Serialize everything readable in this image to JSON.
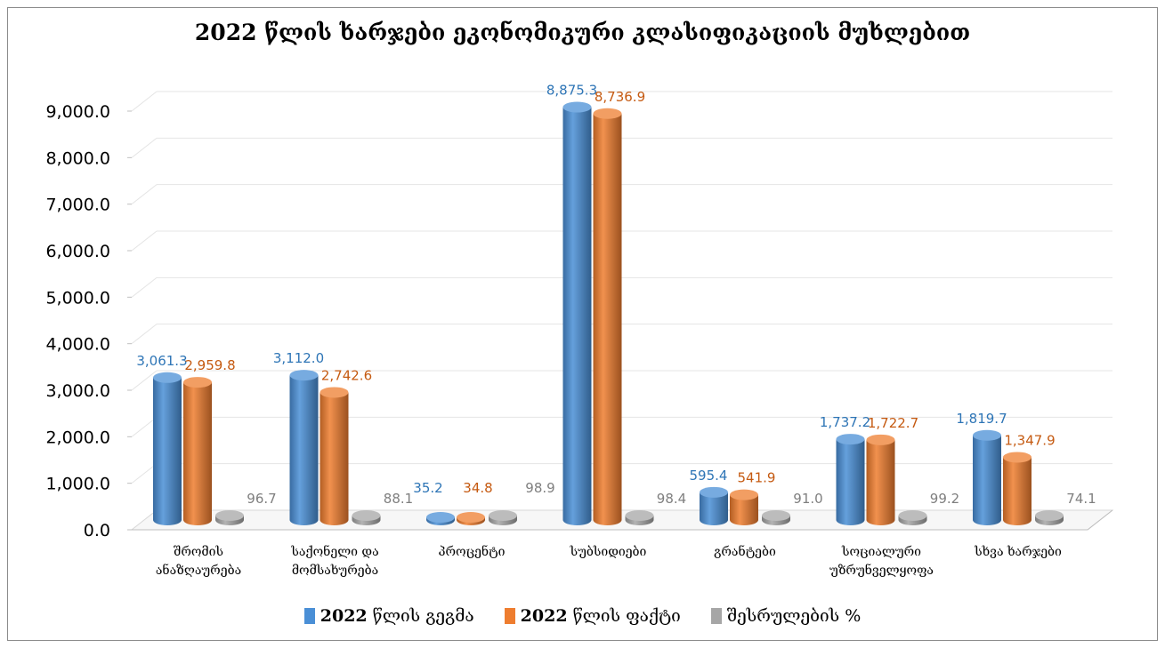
{
  "chart_data": {
    "type": "bar",
    "title": "2022 წლის ხარჯები ეკონომიკური კლასიფიკაციის მუხლებით",
    "categories": [
      [
        "შრომის",
        "ანაზღაურება"
      ],
      [
        "საქონელი და",
        "მომსახურება"
      ],
      [
        "პროცენტი"
      ],
      [
        "სუბსიდიები"
      ],
      [
        "გრანტები"
      ],
      [
        "სოციალური",
        "უზრუნველყოფა"
      ],
      [
        "სხვა ხარჯები"
      ]
    ],
    "series": [
      {
        "name": "2022 წლის გეგმა",
        "color": "#4a8fd6",
        "label_color": "#2e75b6",
        "values": [
          3061.3,
          3112.0,
          35.2,
          8875.3,
          595.4,
          1737.2,
          1819.7
        ],
        "labels": [
          "3,061.3",
          "3,112.0",
          "35.2",
          "8,875.3",
          "595.4",
          "1,737.2",
          "1,819.7"
        ]
      },
      {
        "name": "2022 წლის ფაქტი",
        "color": "#ee7d2f",
        "label_color": "#c55a11",
        "values": [
          2959.8,
          2742.6,
          34.8,
          8736.9,
          541.9,
          1722.7,
          1347.9
        ],
        "labels": [
          "2,959.8",
          "2,742.6",
          "34.8",
          "8,736.9",
          "541.9",
          "1,722.7",
          "1,347.9"
        ]
      },
      {
        "name": "შესრულების %",
        "color": "#a6a6a6",
        "label_color": "#7f7f7f",
        "values": [
          96.7,
          88.1,
          98.9,
          98.4,
          91.0,
          99.2,
          74.1
        ],
        "labels": [
          "96.7",
          "88.1",
          "98.9",
          "98.4",
          "91.0",
          "99.2",
          "74.1"
        ]
      }
    ],
    "y_ticks": [
      "0.0",
      "1,000.0",
      "2,000.0",
      "3,000.0",
      "4,000.0",
      "5,000.0",
      "6,000.0",
      "7,000.0",
      "8,000.0",
      "9,000.0"
    ],
    "ylim": [
      0,
      9000
    ],
    "grid": true,
    "legend": "bottom"
  },
  "legend": {
    "items": [
      {
        "bold": "2022",
        "rest": " წლის გეგმა",
        "color": "#4a8fd6"
      },
      {
        "bold": "2022",
        "rest": " წლის ფაქტი",
        "color": "#ee7d2f"
      },
      {
        "bold": "",
        "rest": "შესრულების %",
        "color": "#a6a6a6"
      }
    ]
  }
}
